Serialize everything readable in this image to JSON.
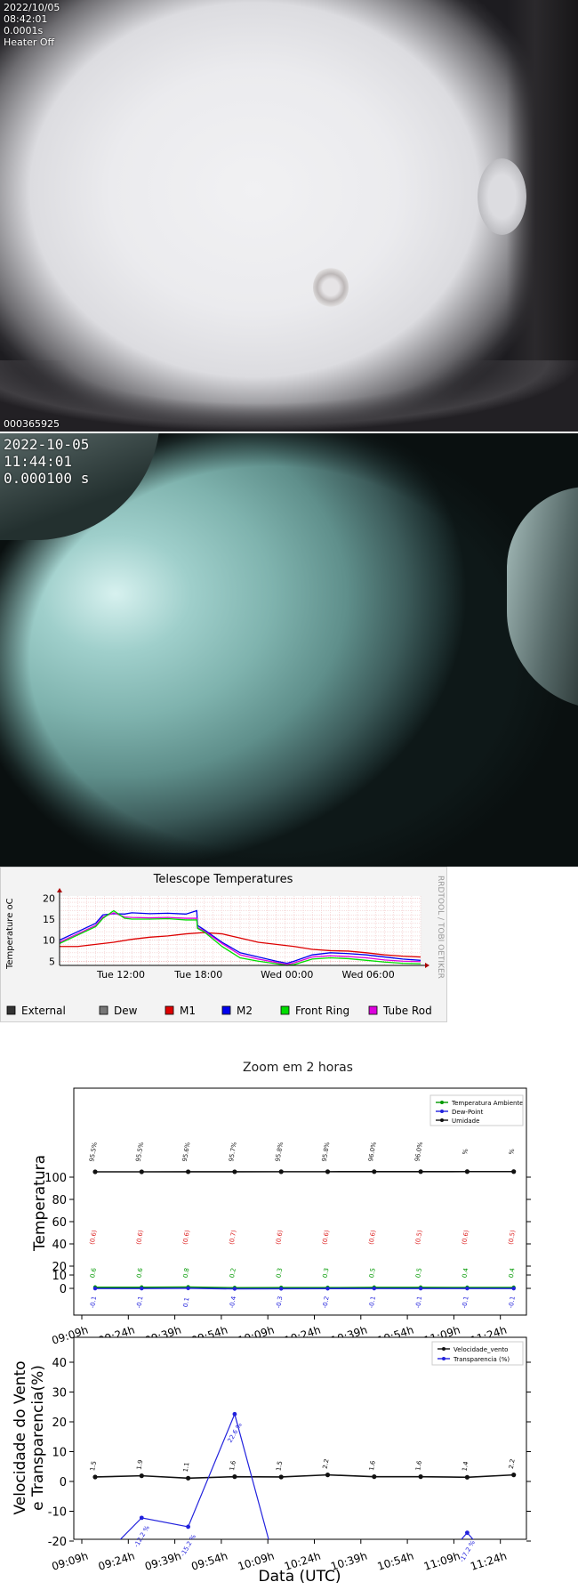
{
  "camera1": {
    "date": "2022/10/05",
    "time": "08:42:01",
    "exposure": "0.0001s",
    "heater": "Heater Off",
    "frame_id": "000365925"
  },
  "camera2": {
    "date": "2022-10-05",
    "time": "11:44:01",
    "exposure": "0.000100 s"
  },
  "chart_data": [
    {
      "type": "line",
      "title": "Telescope Temperatures",
      "ylabel": "Temperature oC",
      "watermark": "RRDTOOL / TOBI OETIKER",
      "ylim": [
        4,
        20.5
      ],
      "yticks": [
        5,
        10,
        15,
        20
      ],
      "xlim": [
        0,
        100
      ],
      "xticks": [
        {
          "x": 17,
          "label": "Tue 12:00"
        },
        {
          "x": 38.5,
          "label": "Tue 18:00"
        },
        {
          "x": 63,
          "label": "Wed 00:00"
        },
        {
          "x": 85.5,
          "label": "Wed 06:00"
        }
      ],
      "colors": {
        "External": "#333333",
        "Dew": "#777777",
        "M1": "#dd0000",
        "M2": "#0000ee",
        "Front Ring": "#00dd00",
        "Tube Rod": "#dd00dd"
      },
      "legend": [
        "External",
        "Dew",
        "M1",
        "M2",
        "Front Ring",
        "Tube Rod"
      ],
      "series": [
        {
          "name": "M1",
          "color": "#dd0000",
          "x": [
            0,
            5,
            10,
            15,
            20,
            25,
            30,
            35,
            40,
            45,
            50,
            55,
            60,
            65,
            70,
            75,
            80,
            85,
            90,
            95,
            100
          ],
          "y": [
            8.5,
            8.5,
            9,
            9.5,
            10.2,
            10.7,
            11,
            11.5,
            11.8,
            11.5,
            10.5,
            9.5,
            9,
            8.5,
            7.8,
            7.5,
            7.4,
            7,
            6.5,
            6.2,
            6
          ]
        },
        {
          "name": "M2",
          "color": "#0000ee",
          "x": [
            0,
            5,
            10,
            12,
            15,
            18,
            20,
            25,
            30,
            35,
            38,
            38.2,
            40,
            45,
            50,
            55,
            60,
            63,
            65,
            70,
            75,
            80,
            85,
            90,
            95,
            100
          ],
          "y": [
            10,
            12,
            14,
            16,
            16.3,
            16.2,
            16.5,
            16.3,
            16.4,
            16.2,
            17,
            13.5,
            12.5,
            9.5,
            7,
            6,
            5,
            4.5,
            5,
            6.5,
            7,
            6.8,
            6.5,
            6,
            5.5,
            5.2
          ]
        },
        {
          "name": "Tube Rod",
          "color": "#dd00dd",
          "x": [
            0,
            5,
            10,
            12,
            15,
            18,
            20,
            25,
            30,
            35,
            38,
            38.2,
            40,
            45,
            50,
            55,
            60,
            63,
            65,
            70,
            75,
            80,
            85,
            90,
            95,
            100
          ],
          "y": [
            9.5,
            11.5,
            13.5,
            15.5,
            16.5,
            15.5,
            15.4,
            15.3,
            15.4,
            15.2,
            15.2,
            13,
            12.2,
            9.2,
            6.5,
            5.5,
            4.7,
            4.2,
            4.6,
            6,
            6.3,
            6.1,
            5.8,
            5.3,
            5,
            4.9
          ]
        },
        {
          "name": "Front Ring",
          "color": "#00dd00",
          "x": [
            0,
            5,
            10,
            12,
            15,
            18,
            20,
            25,
            30,
            35,
            38,
            38.2,
            40,
            45,
            50,
            55,
            60,
            63,
            65,
            70,
            75,
            80,
            85,
            90,
            95,
            100
          ],
          "y": [
            9.2,
            11.2,
            13.2,
            15.2,
            17,
            15.2,
            15,
            15,
            15.1,
            14.8,
            14.8,
            12.8,
            12,
            8.5,
            5.8,
            5,
            4.4,
            4,
            4.2,
            5.5,
            5.8,
            5.6,
            5.2,
            4.8,
            4.5,
            4.4
          ]
        }
      ]
    },
    {
      "type": "line",
      "title": "Zoom em 2 horas",
      "ylabel": "Temperatura",
      "ylim": [
        -12,
        150
      ],
      "yticks": [
        0,
        10,
        20,
        40,
        60,
        80,
        100
      ],
      "xticks": [
        "09:09h",
        "09:24h",
        "09:39h",
        "09:54h",
        "10:09h",
        "10:24h",
        "10:39h",
        "10:54h",
        "11:09h",
        "11:24h"
      ],
      "legend": [
        "Temperatura Ambiente",
        "Dew-Point",
        "Umidade"
      ],
      "x": [
        "09:14",
        "09:29",
        "09:44",
        "09:59",
        "10:14",
        "10:29",
        "10:44",
        "10:59",
        "11:14",
        "11:29"
      ],
      "series": [
        {
          "name": "Temperatura Ambiente",
          "color": "#009900",
          "values": [
            0.6,
            0.6,
            0.8,
            0.2,
            0.3,
            0.3,
            0.5,
            0.5,
            0.4,
            0.4
          ],
          "labels": [
            "0.6",
            "0.6",
            "0.8",
            "0.2",
            "0.3",
            "0.3",
            "0.5",
            "0.5",
            "0.4",
            "0.4"
          ]
        },
        {
          "name": "Dew-Point",
          "color": "#2222dd",
          "values": [
            -0.1,
            -0.1,
            0.1,
            -0.4,
            -0.3,
            -0.2,
            -0.1,
            -0.1,
            -0.1,
            -0.1
          ],
          "labels": [
            "-0.1",
            "-0.1",
            "0.1",
            "-0.4",
            "-0.3",
            "-0.2",
            "-0.1",
            "-0.1",
            "-0.1",
            "-0.1"
          ]
        },
        {
          "name": "Umidade",
          "color": "#111111",
          "values": [
            95.5,
            95.5,
            95.6,
            95.7,
            95.8,
            95.8,
            96.0,
            96.0,
            96.1,
            96.1
          ],
          "labels": [
            "95.5%",
            "95.5%",
            "95.6%",
            "95.7%",
            "95.8%",
            "95.8%",
            "96.0%",
            "96.0%",
            "%",
            "%"
          ]
        }
      ],
      "red_labels": [
        "(0.6)",
        "(0.6)",
        "(0.6)",
        "(0.7)",
        "(0.6)",
        "(0.6)",
        "(0.6)",
        "(0.5)",
        "(0.6)",
        "(0.5)"
      ]
    },
    {
      "type": "line",
      "xlabel": "Data (UTC)",
      "ylabel_lines": [
        "Velocidade do Vento",
        "e Transparencia(%)"
      ],
      "ylim": [
        -20,
        48
      ],
      "yticks": [
        -20,
        -10,
        0,
        10,
        20,
        30,
        40
      ],
      "xticks": [
        "09:09h",
        "09:24h",
        "09:39h",
        "09:54h",
        "10:09h",
        "10:24h",
        "10:39h",
        "10:54h",
        "11:09h",
        "11:24h"
      ],
      "legend": [
        "Velocidade_vento",
        "Transparencia (%)"
      ],
      "x": [
        "09:14",
        "09:29",
        "09:44",
        "09:59",
        "10:14",
        "10:29",
        "10:44",
        "10:59",
        "11:14",
        "11:29"
      ],
      "series": [
        {
          "name": "Velocidade_vento",
          "color": "#111111",
          "values": [
            1.5,
            1.9,
            1.1,
            1.6,
            1.5,
            2.2,
            1.6,
            1.6,
            1.4,
            2.2
          ],
          "labels": [
            "1.5",
            "1.9",
            "1.1",
            "1.6",
            "1.5",
            "2.2",
            "1.6",
            "1.6",
            "1.4",
            "2.2"
          ]
        },
        {
          "name": "Transparencia (%)",
          "color": "#2222dd",
          "values": [
            -28,
            -12.2,
            -15.2,
            22.6,
            -35,
            null,
            null,
            null,
            -17.2,
            null
          ],
          "labels": [
            "",
            "-12.2 %",
            "-15.2 %",
            "22.6 %",
            "",
            "",
            "",
            "",
            "-17.2 %",
            ""
          ]
        }
      ]
    }
  ]
}
